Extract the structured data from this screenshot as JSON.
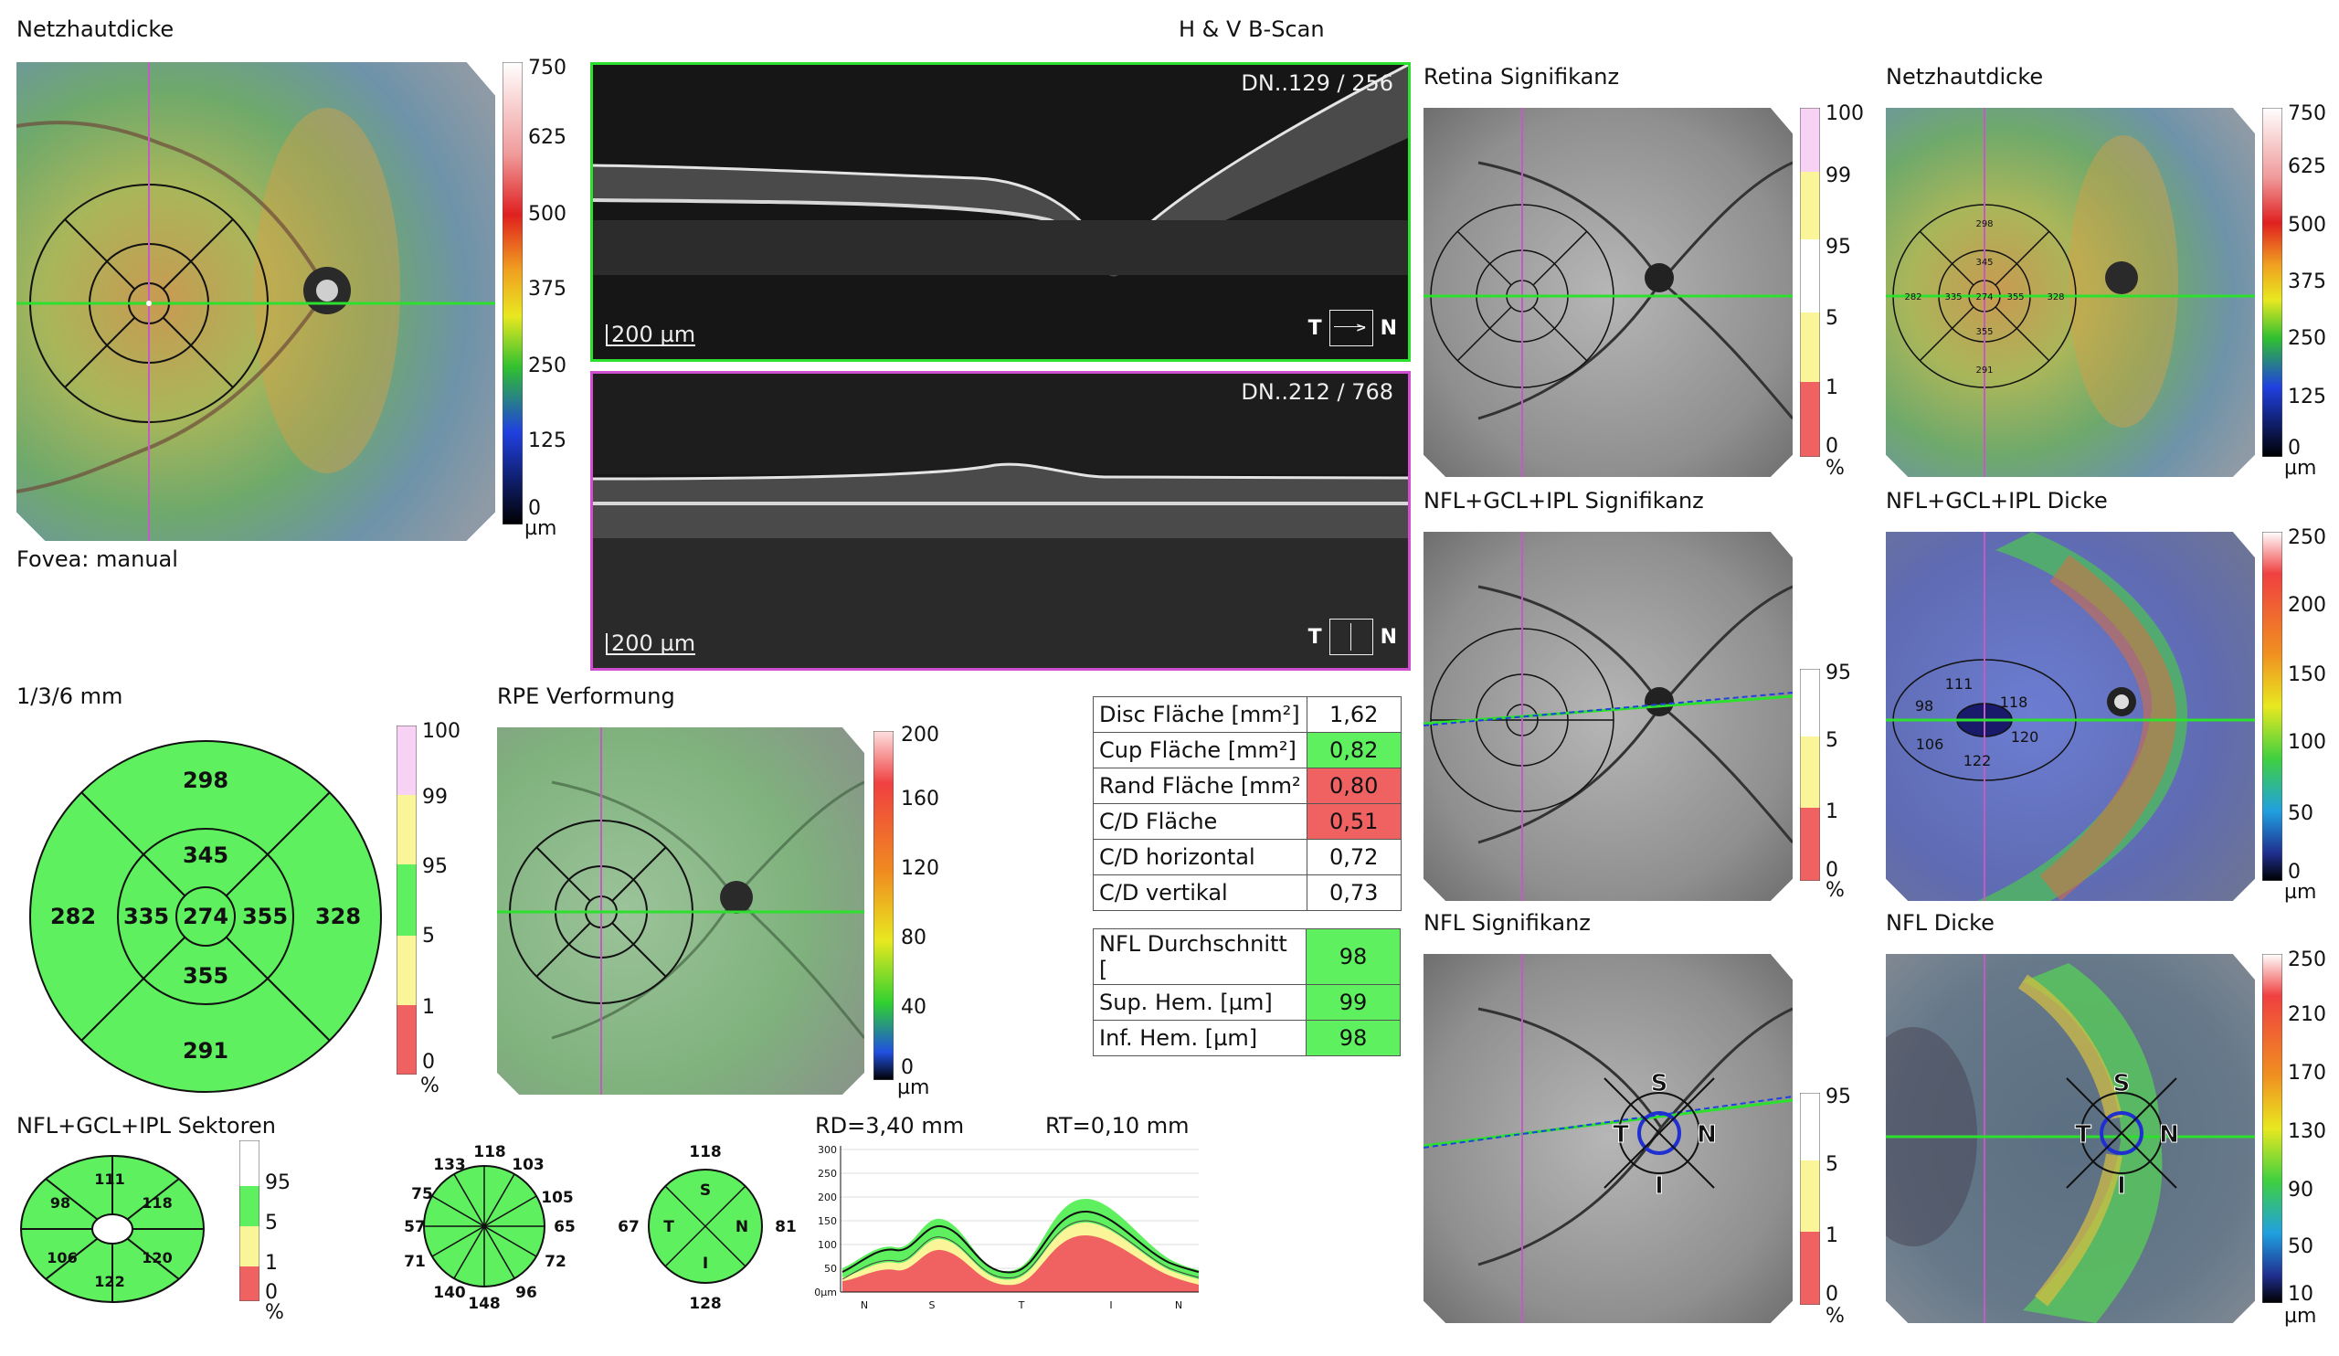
{
  "titles": {
    "netzhautdicke_left": "Netzhautdicke",
    "bscan_header": "H & V B-Scan",
    "retina_sig": "Retina Signifikanz",
    "netzhautdicke_right": "Netzhautdicke",
    "fovea": "Fovea: manual",
    "nfl_gcl_ipl_sig": "NFL+GCL+IPL Signifikanz",
    "nfl_gcl_ipl_dicke": "NFL+GCL+IPL Dicke",
    "grid_136": "1/3/6 mm",
    "rpe": "RPE Verformung",
    "nfl_sig": "NFL Signifikanz",
    "nfl_dicke": "NFL Dicke",
    "nfl_gcl_ipl_sektoren": "NFL+GCL+IPL Sektoren",
    "rd": "RD=3,40 mm",
    "rt": "RT=0,10 mm"
  },
  "bscans": {
    "top_label": "DN..129 / 256",
    "bottom_label": "DN..212 / 768",
    "scale": "200 µm",
    "dir_t": "T",
    "dir_n": "N"
  },
  "colorbars": {
    "thickness_750": [
      "750",
      "625",
      "500",
      "375",
      "250",
      "125",
      "0"
    ],
    "unit_um": "µm",
    "percent": "%",
    "sig_100": [
      "100",
      "99",
      "95",
      "5",
      "1",
      "0"
    ],
    "sig_95": [
      "95",
      "5",
      "1",
      "0"
    ],
    "rpe_200": [
      "200",
      "160",
      "120",
      "80",
      "40",
      "0"
    ],
    "gcl_250": [
      "250",
      "200",
      "150",
      "100",
      "50",
      "0"
    ],
    "nfl_250": [
      "250",
      "210",
      "170",
      "130",
      "90",
      "50",
      "10"
    ]
  },
  "etdrs": {
    "center": "274",
    "inner_sup": "345",
    "inner_temp": "335",
    "inner_nas": "355",
    "inner_inf": "355",
    "outer_sup": "298",
    "outer_temp": "282",
    "outer_nas": "328",
    "outer_inf": "291"
  },
  "gcl_sectors": {
    "top_l": "111",
    "top_r": "118",
    "left": "98",
    "right": "120",
    "bot_l": "106",
    "bot_r": "122"
  },
  "clock_hours": {
    "h1": "118",
    "h2": "103",
    "h3": "105",
    "h4": "65",
    "h5": "72",
    "h6": "96",
    "h7": "148",
    "h8": "140",
    "h9": "71",
    "h10": "57",
    "h11": "75",
    "h12": "133"
  },
  "quadrants": {
    "s_val": "118",
    "n_val": "81",
    "i_val": "128",
    "t_val": "67",
    "S": "S",
    "N": "N",
    "I": "I",
    "T": "T"
  },
  "disc_table": [
    {
      "label": "Disc Fläche [mm²]",
      "value": "1,62",
      "status": "none"
    },
    {
      "label": "Cup Fläche [mm²]",
      "value": "0,82",
      "status": "green"
    },
    {
      "label": "Rand Fläche [mm²",
      "value": "0,80",
      "status": "red"
    },
    {
      "label": "C/D Fläche",
      "value": "0,51",
      "status": "red"
    },
    {
      "label": "C/D horizontal",
      "value": "0,72",
      "status": "none"
    },
    {
      "label": "C/D vertikal",
      "value": "0,73",
      "status": "none"
    }
  ],
  "nfl_table": [
    {
      "label": "NFL Durchschnitt [",
      "value": "98",
      "status": "green"
    },
    {
      "label": "Sup. Hem. [µm]",
      "value": "99",
      "status": "green"
    },
    {
      "label": "Inf. Hem. [µm]",
      "value": "98",
      "status": "green"
    }
  ],
  "tsnit": {
    "y_ticks": [
      "300",
      "250",
      "200",
      "150",
      "100",
      "50",
      "0µm"
    ],
    "x_ticks": [
      "N",
      "S",
      "T",
      "I",
      "N"
    ]
  },
  "colors": {
    "normal_green": "#5ef05e",
    "borderline_yellow": "#fbf59a",
    "abnormal_red": "#f06262",
    "superior_pink": "#f7d2f4",
    "scan_green": "#2ee02e",
    "scan_purple": "#d04ed0"
  }
}
